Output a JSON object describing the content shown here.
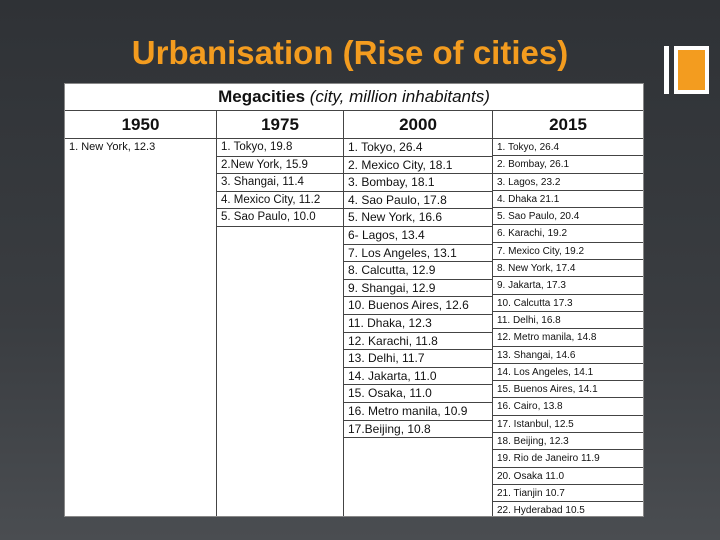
{
  "slide": {
    "title": "Urbanisation (Rise of cities)"
  },
  "table": {
    "title_main": "Megacities",
    "title_sub": "(city, million inhabitants)",
    "columns": [
      {
        "year": "1950",
        "entries": [
          "1. New York, 12.3"
        ]
      },
      {
        "year": "1975",
        "entries": [
          "1. Tokyo, 19.8",
          "2.New York, 15.9",
          "3. Shangai, 11.4",
          "4. Mexico City, 11.2",
          "5. Sao Paulo, 10.0"
        ]
      },
      {
        "year": "2000",
        "entries": [
          "1. Tokyo, 26.4",
          "2. Mexico City, 18.1",
          "3. Bombay, 18.1",
          "4. Sao Paulo, 17.8",
          "5. New York, 16.6",
          "6- Lagos, 13.4",
          "7. Los Angeles, 13.1",
          "8. Calcutta, 12.9",
          "9. Shangai, 12.9",
          "10. Buenos Aires, 12.6",
          "11. Dhaka, 12.3",
          "12. Karachi, 11.8",
          "13. Delhi, 11.7",
          "14. Jakarta, 11.0",
          "15. Osaka, 11.0",
          "16. Metro manila, 10.9",
          "17.Beijing, 10.8"
        ]
      },
      {
        "year": "2015",
        "entries": [
          "1. Tokyo, 26.4",
          "2. Bombay, 26.1",
          "3. Lagos, 23.2",
          "4. Dhaka 21.1",
          "5. Sao Paulo, 20.4",
          "6. Karachi, 19.2",
          "7. Mexico City, 19.2",
          "8. New York, 17.4",
          "9. Jakarta, 17.3",
          "10. Calcutta 17.3",
          "11. Delhi, 16.8",
          "12. Metro manila, 14.8",
          "13. Shangai, 14.6",
          "14. Los Angeles, 14.1",
          "15. Buenos Aires, 14.1",
          "16. Cairo, 13.8",
          "17. Istanbul, 12.5",
          "18. Beijing, 12.3",
          "19. Rio de Janeiro 11.9",
          "20. Osaka 11.0",
          "21. Tianjin 10.7",
          "22. Hyderabad 10.5"
        ]
      }
    ]
  }
}
